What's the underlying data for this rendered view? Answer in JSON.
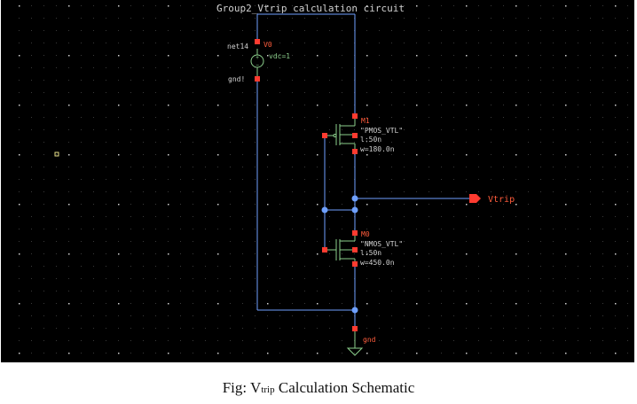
{
  "schematic": {
    "title": "Group2_Vtrip calculation circuit",
    "vsource": {
      "net_label": "net14",
      "name": "V0",
      "value": "vdc=1",
      "gnd_label": "gnd!"
    },
    "pmos": {
      "name": "M1",
      "model": "\"PMOS_VTL\"",
      "length": "l:50n",
      "width": "w=180.0n"
    },
    "nmos": {
      "name": "M0",
      "model": "\"NMOS_VTL\"",
      "length": "l:50n",
      "width": "w=450.0n"
    },
    "output_pin": "Vtrip",
    "ground_label": "gnd"
  },
  "colors": {
    "background": "#000000",
    "wire": "#6fa0ff",
    "pin": "#ff3b30",
    "text": "#d0d0d0",
    "label": "#ff5c3c",
    "device": "#8ccf8c"
  },
  "caption": {
    "prefix": "Fig: V",
    "subscript": "trip",
    "suffix": " Calculation Schematic"
  }
}
